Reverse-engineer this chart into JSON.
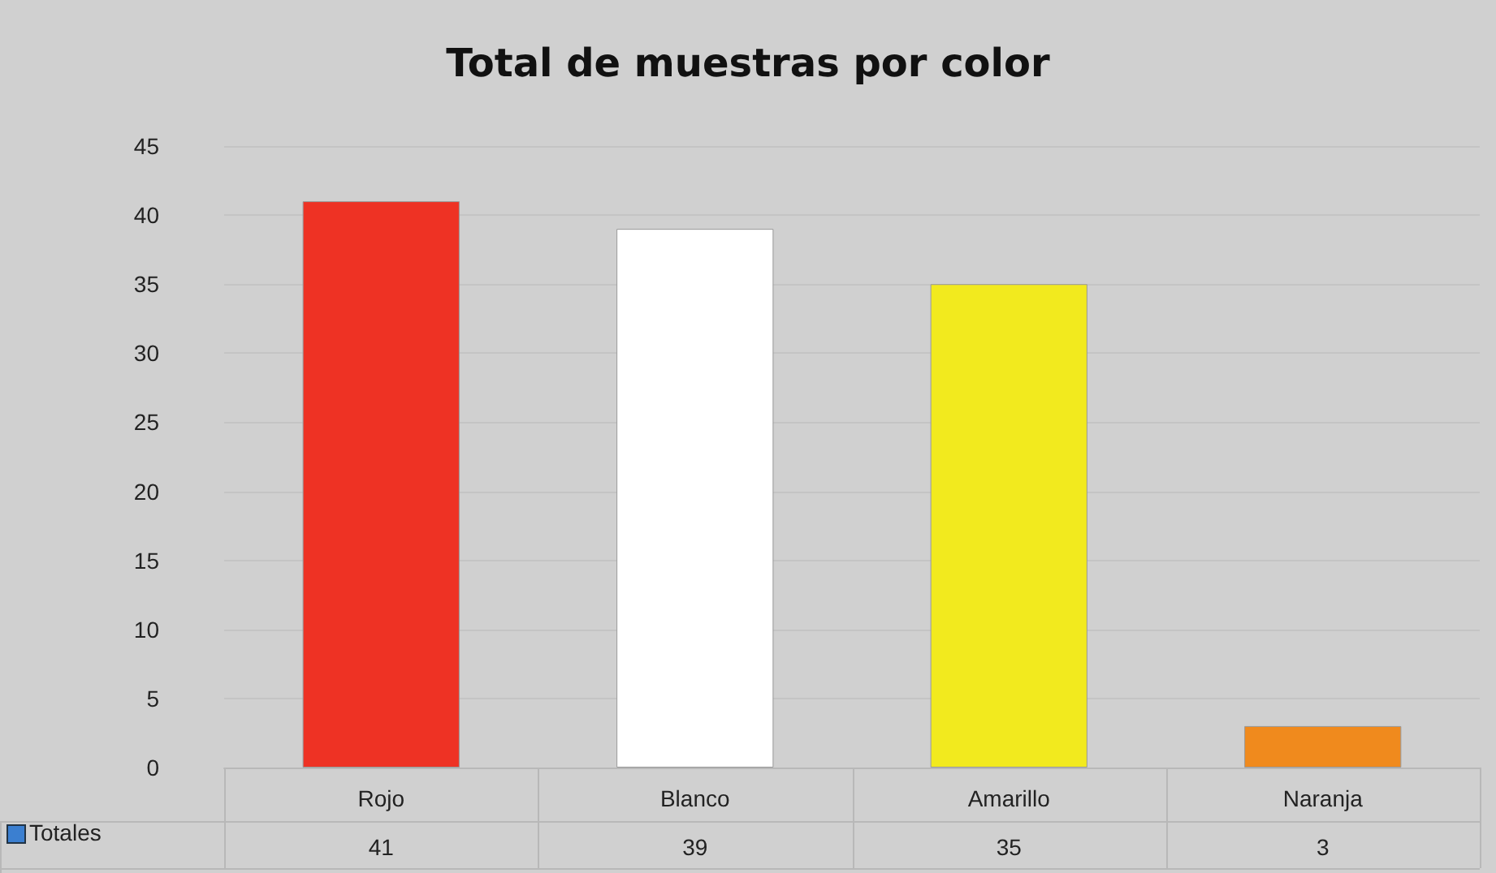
{
  "chart_data": {
    "type": "bar",
    "title": "Total de muestras por color",
    "categories": [
      "Rojo",
      "Blanco",
      "Amarillo",
      "Naranja"
    ],
    "series": [
      {
        "name": "Totales",
        "values": [
          41,
          39,
          35,
          3
        ],
        "colors": [
          "#ee3224",
          "#ffffff",
          "#f2ea1e",
          "#f08a1d"
        ],
        "color": "#3b7fd0"
      }
    ],
    "ylim": [
      0,
      45
    ],
    "yticks": [
      0,
      5,
      10,
      15,
      20,
      25,
      30,
      35,
      40,
      45
    ],
    "grid": "y",
    "legend": "bottom left",
    "data_labels": true
  }
}
